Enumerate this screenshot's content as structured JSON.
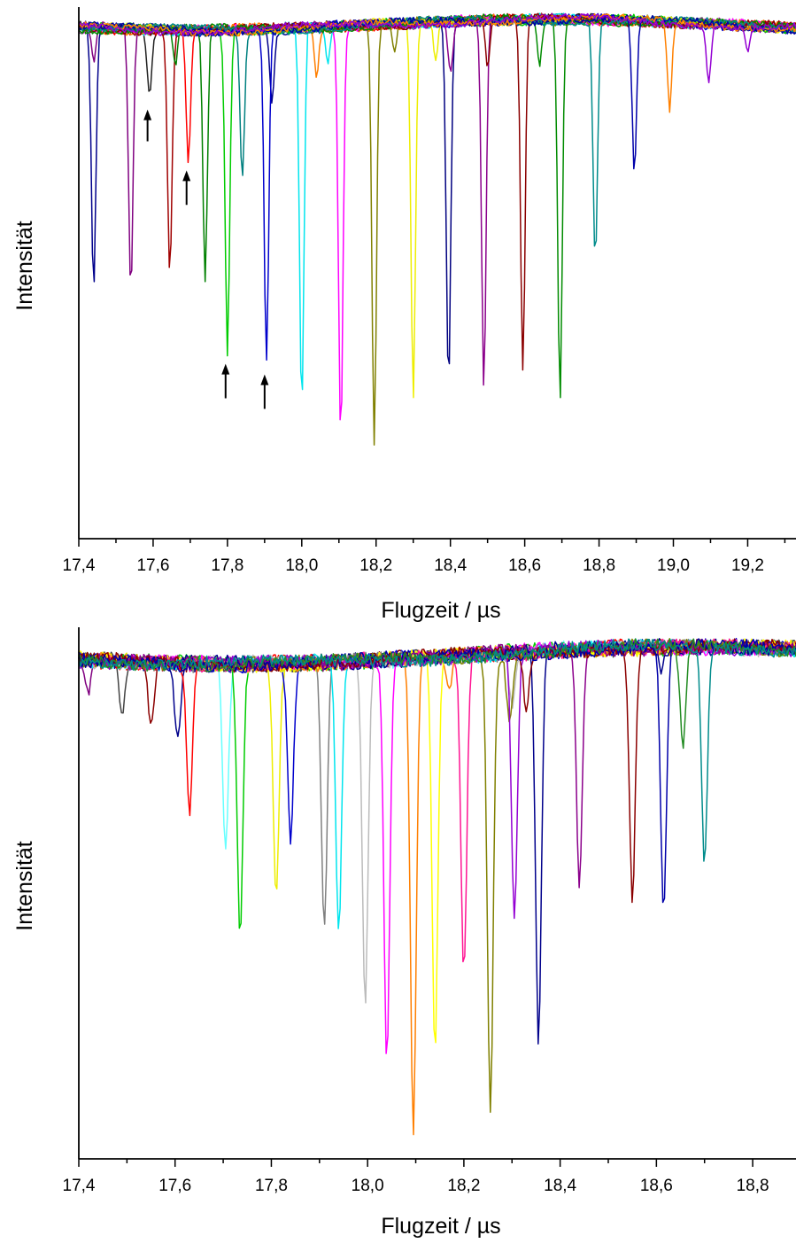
{
  "chart_data": [
    {
      "type": "line",
      "xlabel": "Flugzeit / µs",
      "ylabel": "Intensität",
      "xlim": [
        17.4,
        19.33
      ],
      "ylim": [
        0,
        1
      ],
      "xticks": [
        "17,4",
        "17,6",
        "17,8",
        "18,0",
        "18,2",
        "18,4",
        "18,6",
        "18,8",
        "19,0",
        "19,2"
      ],
      "xtick_values": [
        17.4,
        17.6,
        17.8,
        18.0,
        18.2,
        18.4,
        18.6,
        18.8,
        19.0,
        19.2
      ],
      "yticks_shown": false,
      "grid": false,
      "legend": "none",
      "baseline": 0.97,
      "arrows": [
        {
          "x": 17.585,
          "y_tip": 0.81,
          "y_tail": 0.75
        },
        {
          "x": 17.69,
          "y_tip": 0.695,
          "y_tail": 0.63
        },
        {
          "x": 17.795,
          "y_tip": 0.33,
          "y_tail": 0.265
        },
        {
          "x": 17.9,
          "y_tip": 0.31,
          "y_tail": 0.245
        }
      ],
      "series": [
        {
          "color": "#00008b",
          "peaks": [
            [
              17.44,
              0.48
            ],
            [
              17.92,
              0.84
            ]
          ]
        },
        {
          "color": "#800080",
          "peaks": [
            [
              17.54,
              0.47
            ],
            [
              17.44,
              0.9
            ]
          ]
        },
        {
          "color": "#222222",
          "peaks": [
            [
              17.59,
              0.85
            ]
          ]
        },
        {
          "color": "#a00000",
          "peaks": [
            [
              17.645,
              0.51
            ]
          ]
        },
        {
          "color": "#ff0000",
          "peaks": [
            [
              17.695,
              0.72
            ]
          ]
        },
        {
          "color": "#008000",
          "peaks": [
            [
              17.74,
              0.49
            ],
            [
              17.66,
              0.9
            ]
          ]
        },
        {
          "color": "#008080",
          "peaks": [
            [
              17.84,
              0.69
            ]
          ]
        },
        {
          "color": "#00cc00",
          "peaks": [
            [
              17.8,
              0.36
            ]
          ]
        },
        {
          "color": "#0000cc",
          "peaks": [
            [
              17.905,
              0.34
            ]
          ]
        },
        {
          "color": "#00e5ee",
          "peaks": [
            [
              18.0,
              0.25
            ],
            [
              18.07,
              0.9
            ]
          ]
        },
        {
          "color": "#ff7f00",
          "peaks": [
            [
              18.04,
              0.88
            ]
          ]
        },
        {
          "color": "#ff00ff",
          "peaks": [
            [
              18.105,
              0.19
            ]
          ]
        },
        {
          "color": "#808000",
          "peaks": [
            [
              18.195,
              0.18
            ],
            [
              18.25,
              0.91
            ]
          ]
        },
        {
          "color": "#eeee00",
          "peaks": [
            [
              18.3,
              0.25
            ],
            [
              18.36,
              0.9
            ]
          ]
        },
        {
          "color": "#000080",
          "peaks": [
            [
              18.395,
              0.29
            ]
          ]
        },
        {
          "color": "#8b008b",
          "peaks": [
            [
              18.49,
              0.28
            ],
            [
              18.4,
              0.88
            ]
          ]
        },
        {
          "color": "#8b0000",
          "peaks": [
            [
              18.595,
              0.3
            ],
            [
              18.5,
              0.88
            ]
          ]
        },
        {
          "color": "#008b00",
          "peaks": [
            [
              18.695,
              0.25
            ],
            [
              18.64,
              0.88
            ]
          ]
        },
        {
          "color": "#008b8b",
          "peaks": [
            [
              18.79,
              0.52
            ]
          ]
        },
        {
          "color": "#0000aa",
          "peaks": [
            [
              18.895,
              0.68
            ]
          ]
        },
        {
          "color": "#ff8000",
          "peaks": [
            [
              18.99,
              0.8
            ]
          ]
        },
        {
          "color": "#9400d3",
          "peaks": [
            [
              19.095,
              0.87
            ],
            [
              19.2,
              0.92
            ]
          ]
        }
      ]
    },
    {
      "type": "line",
      "xlabel": "Flugzeit / µs",
      "ylabel": "Intensität",
      "xlim": [
        17.4,
        18.89
      ],
      "ylim": [
        0,
        1
      ],
      "xticks": [
        "17,4",
        "17,6",
        "17,8",
        "18,0",
        "18,2",
        "18,4",
        "18,6",
        "18,8"
      ],
      "xtick_values": [
        17.4,
        17.6,
        17.8,
        18.0,
        18.2,
        18.4,
        18.6,
        18.8
      ],
      "yticks_shown": false,
      "grid": false,
      "legend": "none",
      "baseline": 0.95,
      "series": [
        {
          "color": "#800080",
          "peaks": [
            [
              17.42,
              0.89
            ]
          ]
        },
        {
          "color": "#444444",
          "peaks": [
            [
              17.49,
              0.85
            ]
          ]
        },
        {
          "color": "#8b0000",
          "peaks": [
            [
              17.55,
              0.83
            ]
          ]
        },
        {
          "color": "#00008b",
          "peaks": [
            [
              17.605,
              0.81
            ]
          ]
        },
        {
          "color": "#ff0000",
          "peaks": [
            [
              17.63,
              0.67
            ]
          ]
        },
        {
          "color": "#66ffff",
          "peaks": [
            [
              17.705,
              0.59
            ]
          ]
        },
        {
          "color": "#00cc00",
          "peaks": [
            [
              17.735,
              0.44
            ]
          ]
        },
        {
          "color": "#eeee00",
          "peaks": [
            [
              17.81,
              0.52
            ]
          ]
        },
        {
          "color": "#0000cc",
          "peaks": [
            [
              17.84,
              0.62
            ]
          ]
        },
        {
          "color": "#808080",
          "peaks": [
            [
              17.91,
              0.44
            ]
          ]
        },
        {
          "color": "#00e5ee",
          "peaks": [
            [
              17.94,
              0.43
            ]
          ]
        },
        {
          "color": "#bbbbbb",
          "peaks": [
            [
              17.995,
              0.31
            ],
            [
              18.3,
              0.85
            ]
          ]
        },
        {
          "color": "#ff00ff",
          "peaks": [
            [
              18.04,
              0.19
            ]
          ]
        },
        {
          "color": "#ff7f00",
          "peaks": [
            [
              18.095,
              0.04
            ],
            [
              18.17,
              0.88
            ]
          ]
        },
        {
          "color": "#ffff00",
          "peaks": [
            [
              18.14,
              0.2
            ]
          ]
        },
        {
          "color": "#ff1493",
          "peaks": [
            [
              18.2,
              0.35
            ]
          ]
        },
        {
          "color": "#808000",
          "peaks": [
            [
              18.255,
              0.08
            ],
            [
              18.295,
              0.82
            ]
          ]
        },
        {
          "color": "#9400d3",
          "peaks": [
            [
              18.305,
              0.45
            ]
          ]
        },
        {
          "color": "#00008b",
          "peaks": [
            [
              18.355,
              0.2
            ],
            [
              18.61,
              0.91
            ]
          ]
        },
        {
          "color": "#8b008b",
          "peaks": [
            [
              18.44,
              0.51
            ]
          ]
        },
        {
          "color": "#8b0000",
          "peaks": [
            [
              18.55,
              0.48
            ],
            [
              18.33,
              0.84
            ]
          ]
        },
        {
          "color": "#0000aa",
          "peaks": [
            [
              18.615,
              0.45
            ]
          ]
        },
        {
          "color": "#228b22",
          "peaks": [
            [
              18.655,
              0.75
            ]
          ]
        },
        {
          "color": "#008b8b",
          "peaks": [
            [
              18.7,
              0.54
            ]
          ]
        }
      ]
    }
  ]
}
